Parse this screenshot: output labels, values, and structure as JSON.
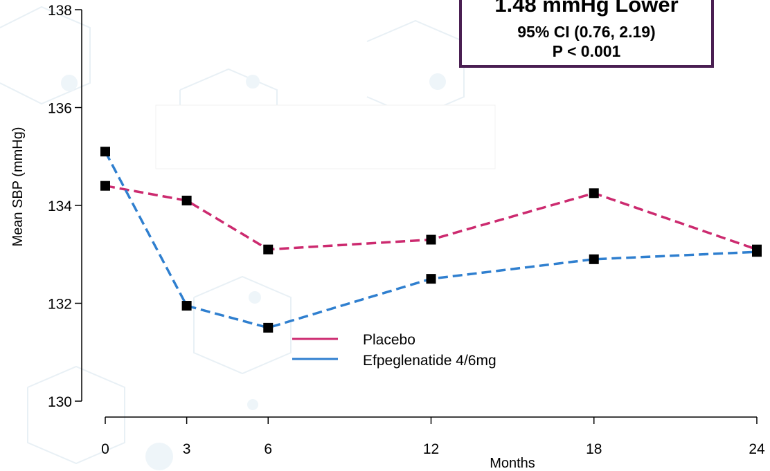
{
  "stat_box": {
    "headline": "1.48 mmHg Lower",
    "ci": "95% CI (0.76, 2.19)",
    "pvalue": "P < 0.001"
  },
  "chart_data": {
    "type": "line",
    "title": "",
    "xlabel": "Months",
    "ylabel": "Mean SBP (mmHg)",
    "x": [
      0,
      3,
      6,
      12,
      18,
      24
    ],
    "xticks": [
      "0",
      "3",
      "6",
      "12",
      "18",
      "24"
    ],
    "yticks": [
      "130",
      "132",
      "134",
      "136",
      "138"
    ],
    "ylim": [
      130,
      138
    ],
    "xlim": [
      0,
      24
    ],
    "grid": false,
    "legend_position": "center",
    "series": [
      {
        "name": "Placebo",
        "color": "#cc2a6f",
        "style": "dashed",
        "values": [
          134.4,
          134.1,
          133.1,
          133.3,
          134.25,
          133.1
        ]
      },
      {
        "name": "Efpeglenatide 4/6mg",
        "color": "#2f7fcf",
        "style": "dashed",
        "values": [
          135.1,
          131.95,
          131.5,
          132.5,
          132.9,
          133.05
        ]
      }
    ],
    "marker_color": "#000000",
    "colors": {
      "box_border": "#4a1f52",
      "placebo": "#cc2a6f",
      "efpeglenatide": "#2f7fcf"
    }
  }
}
